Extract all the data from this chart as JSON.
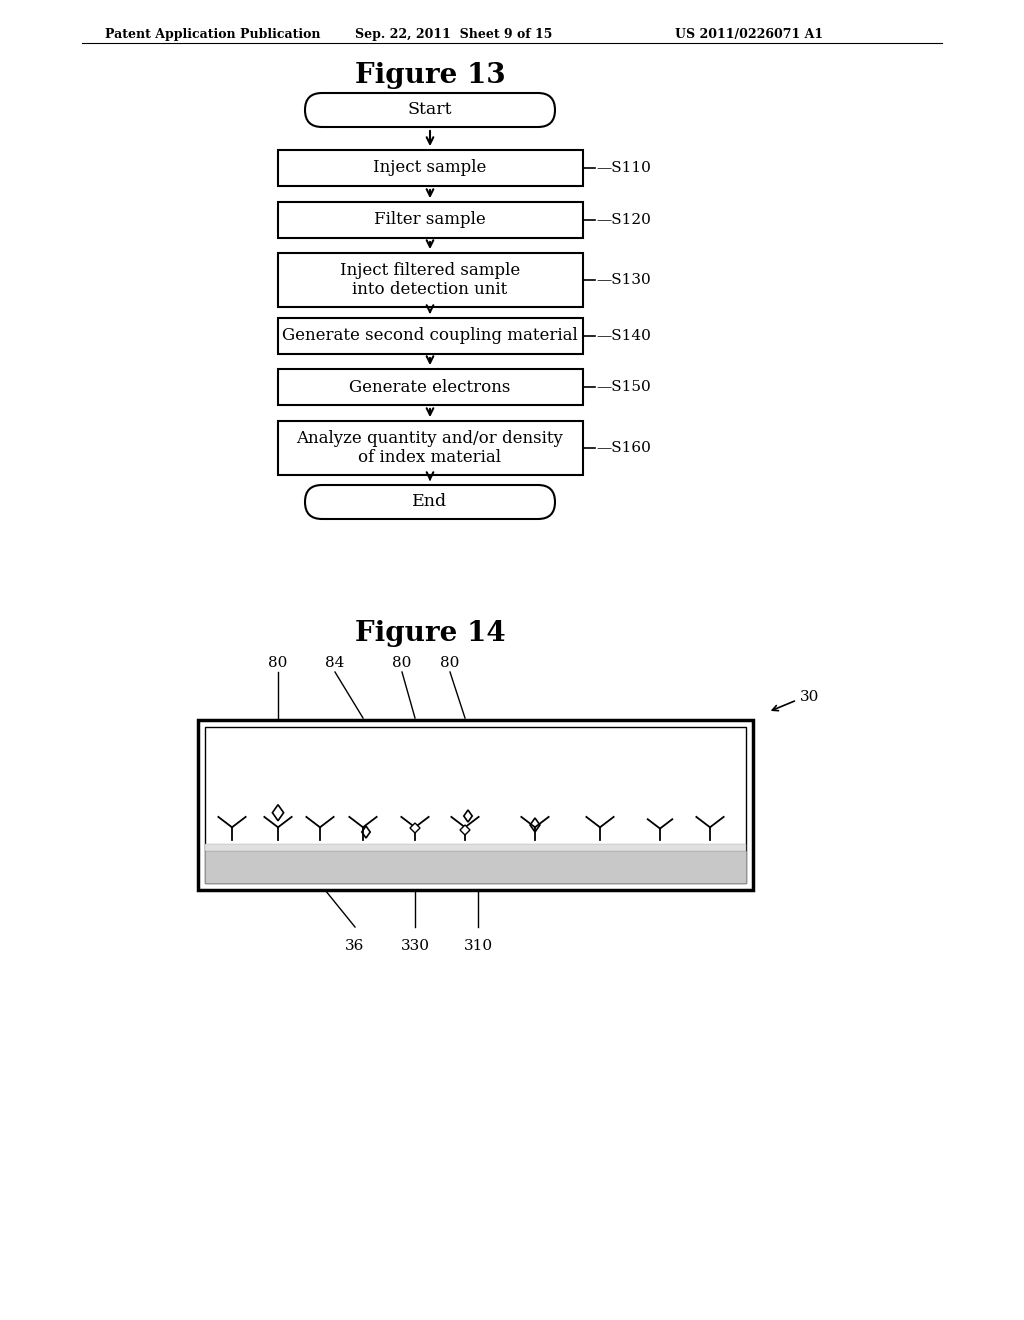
{
  "header_left": "Patent Application Publication",
  "header_center": "Sep. 22, 2011  Sheet 9 of 15",
  "header_right": "US 2011/0226071 A1",
  "fig13_title": "Figure 13",
  "fig14_title": "Figure 14",
  "flowchart_steps": [
    {
      "label": "Start",
      "type": "oval",
      "step_id": ""
    },
    {
      "label": "Inject sample",
      "type": "rect",
      "step_id": "S110"
    },
    {
      "label": "Filter sample",
      "type": "rect",
      "step_id": "S120"
    },
    {
      "label": "Inject filtered sample\ninto detection unit",
      "type": "rect",
      "step_id": "S130"
    },
    {
      "label": "Generate second coupling material",
      "type": "rect",
      "step_id": "S140"
    },
    {
      "label": "Generate electrons",
      "type": "rect",
      "step_id": "S150"
    },
    {
      "label": "Analyze quantity and/or density\nof index material",
      "type": "rect",
      "step_id": "S160"
    },
    {
      "label": "End",
      "type": "oval",
      "step_id": ""
    }
  ],
  "bg_color": "#ffffff",
  "text_color": "#000000"
}
